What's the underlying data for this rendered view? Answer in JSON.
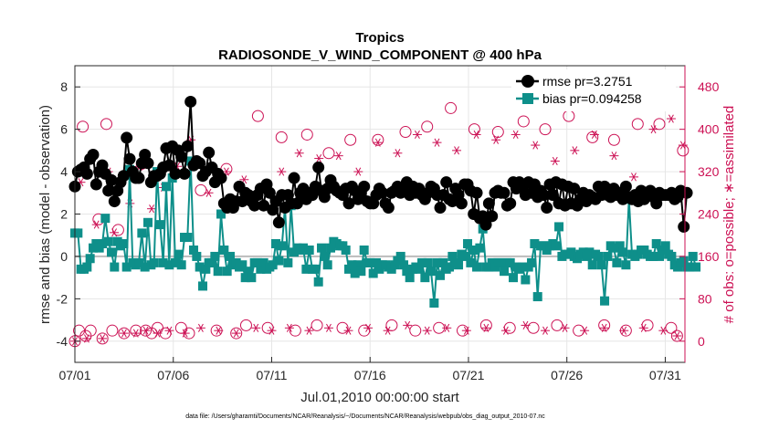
{
  "chart_data": {
    "type": "line",
    "title": "Tropics",
    "subtitle": "RADIOSONDE_V_WIND_COMPONENT @ 400 hPa",
    "xlabel": "Jul.01,2010 00:00:00 start",
    "ylabel": "rmse and bias (model - observation)",
    "y2label": "# of obs: o=possible; ∗=assimilated",
    "footnote": "data file: /Users/gharamti/Documents/NCAR/Reanalysis/~/Documents/NCAR/Reanalysis/webpub/obs_diag_output_2010-07.nc",
    "xlim": [
      1,
      32
    ],
    "ylim": [
      -5,
      9
    ],
    "y2lim": [
      -40,
      520
    ],
    "xticks": [
      1,
      6,
      11,
      16,
      21,
      26,
      31
    ],
    "xtick_labels": [
      "07/01",
      "07/06",
      "07/11",
      "07/16",
      "07/21",
      "07/26",
      "07/31"
    ],
    "yticks": [
      -4,
      -2,
      0,
      2,
      4,
      6,
      8
    ],
    "ytick_labels": [
      "-4",
      "-2",
      "0",
      "2",
      "4",
      "6",
      "8"
    ],
    "y2ticks": [
      0,
      80,
      160,
      240,
      320,
      400,
      480
    ],
    "y2tick_labels": [
      "0",
      "80",
      "160",
      "240",
      "320",
      "400",
      "480"
    ],
    "legend": {
      "location": "top-right",
      "entries": [
        "rmse pr=3.2751",
        "bias pr=0.094258"
      ]
    },
    "colors": {
      "rmse": "#000000",
      "bias": "#0e8f8a",
      "obs": "#cc1154",
      "zero": "#bbbbbb"
    },
    "series": [
      {
        "name": "rmse pr=3.2751",
        "values": [
          3.3,
          4.0,
          4.1,
          4.2,
          3.9,
          4.6,
          4.8,
          3.4,
          4.0,
          4.3,
          3.9,
          3.1,
          3.6,
          2.6,
          3.1,
          3.5,
          3.8,
          5.6,
          4.6,
          4.0,
          3.7,
          3.7,
          4.4,
          4.8,
          4.4,
          3.5,
          3.8,
          3.8,
          3.9,
          4.2,
          5.1,
          4.3,
          5.2,
          3.9,
          5.0,
          4.7,
          3.9,
          5.2,
          7.3,
          4.3,
          4.5,
          4.4,
          3.8,
          4.0,
          4.9,
          4.2,
          3.5,
          3.9,
          3.7,
          2.5,
          2.3,
          2.7,
          2.3,
          2.6,
          3.3,
          2.6,
          3.0,
          2.9,
          2.6,
          2.4,
          2.9,
          3.2,
          2.4,
          3.4,
          3.0,
          2.2,
          2.6,
          1.6,
          2.9,
          2.3,
          2.9,
          2.5,
          3.7,
          2.5,
          3.0,
          3.2,
          2.7,
          3.0,
          2.9,
          3.3,
          4.2,
          3.1,
          2.8,
          3.2,
          3.6,
          3.3,
          3.1,
          3.0,
          2.9,
          3.2,
          2.5,
          3.3,
          3.1,
          2.7,
          3.0,
          3.3,
          2.6,
          2.5,
          2.5,
          2.9,
          3.2,
          3.0,
          2.5,
          2.3,
          3.0,
          3.1,
          3.3,
          3.0,
          3.1,
          3.5,
          2.9,
          3.3,
          3.0,
          3.2,
          2.9,
          2.7,
          3.0,
          3.3,
          3.2,
          2.9,
          2.3,
          2.9,
          3.5,
          2.7,
          2.6,
          3.2,
          2.9,
          2.5,
          3.4,
          3.4,
          3.1,
          2.0,
          3.0,
          1.8,
          1.9,
          1.5,
          2.5,
          1.9,
          3.0,
          3.1,
          3.0,
          3.0,
          2.4,
          2.5,
          3.5,
          3.2,
          3.5,
          3.3,
          2.9,
          3.5,
          3.0,
          3.4,
          2.8,
          3.1,
          2.9,
          2.3,
          3.4,
          2.9,
          3.5,
          2.5,
          3.4,
          2.4,
          3.3,
          2.5,
          3.2,
          2.4,
          2.7,
          3.0,
          2.6,
          2.9,
          2.8,
          2.7,
          3.3,
          2.9,
          3.3,
          2.9,
          2.8,
          3.2,
          2.9,
          3.0,
          2.7,
          3.3,
          2.8,
          2.7,
          2.9,
          2.6,
          3.1,
          2.7,
          2.9,
          3.1,
          2.8,
          2.5,
          3.0,
          2.9,
          2.9,
          2.9,
          3.0,
          2.7,
          2.8,
          3.1,
          1.4,
          3.0
        ]
      },
      {
        "name": "bias pr=0.094258",
        "values": [
          1.1,
          1.1,
          -0.6,
          -0.6,
          -0.5,
          -0.1,
          0.4,
          0.6,
          0.4,
          0.6,
          1.8,
          0.7,
          0.2,
          -0.5,
          0.7,
          0.5,
          0.6,
          -0.5,
          4.1,
          -0.3,
          -0.4,
          -0.3,
          1.1,
          -0.5,
          1.6,
          -0.4,
          -0.3,
          4.0,
          1.5,
          -0.3,
          3.3,
          -0.4,
          3.7,
          -0.3,
          0.1,
          -0.4,
          0.9,
          0.9,
          4.5,
          0.3,
          0.0,
          -0.5,
          -1.4,
          -0.6,
          -0.3,
          -0.3,
          0.0,
          -0.7,
          2.0,
          0.3,
          -0.7,
          0.0,
          -0.4,
          -0.3,
          -0.5,
          -0.4,
          -1.0,
          -0.7,
          -1.0,
          -0.3,
          -0.3,
          -0.6,
          -0.3,
          -0.6,
          -0.5,
          -0.4,
          0.6,
          -0.2,
          0.5,
          2.3,
          -0.3,
          2.4,
          0.2,
          0.4,
          0.3,
          0.4,
          -0.6,
          0.3,
          -0.6,
          -0.6,
          -1.2,
          0.4,
          0.0,
          -0.4,
          0.4,
          0.7,
          0.6,
          0.5,
          0.5,
          0.3,
          -0.6,
          -0.4,
          -0.8,
          -0.4,
          -0.7,
          0.3,
          -0.3,
          -0.3,
          -0.8,
          -0.3,
          -0.6,
          -0.4,
          -0.4,
          -0.5,
          -0.6,
          -0.4,
          -0.2,
          0.0,
          -0.4,
          -0.7,
          -1.0,
          -0.6,
          -0.5,
          -0.6,
          -0.3,
          -1.0,
          -0.3,
          -0.7,
          -2.2,
          -0.3,
          -0.9,
          -0.3,
          -0.6,
          -0.5,
          0.0,
          -0.3,
          -0.4,
          0.1,
          0.0,
          0.6,
          -0.3,
          0.3,
          -0.5,
          0.4,
          1.3,
          -0.5,
          -0.5,
          -0.3,
          -0.5,
          -0.3,
          -0.3,
          -0.7,
          -0.3,
          -0.3,
          -1.0,
          -0.5,
          -0.6,
          -0.5,
          -1.1,
          -0.5,
          -0.3,
          0.6,
          -1.9,
          0.5,
          0.5,
          0.3,
          0.5,
          0.6,
          0.5,
          1.4,
          0.0,
          0.1,
          0.1,
          0.2,
          0.0,
          -0.1,
          0.1,
          0.2,
          0.0,
          0.2,
          -0.4,
          0.1,
          0.0,
          -0.4,
          -2.1,
          0.0,
          0.5,
          0.4,
          -0.3,
          0.5,
          0.2,
          -0.4,
          2.7,
          0.1,
          0.0,
          0.1,
          0.3,
          0.3,
          0.1,
          0.0,
          0.0,
          0.6,
          0.0,
          0.3,
          0.5,
          0.1,
          0.0,
          -0.4,
          -0.5,
          -0.3,
          -0.2,
          -0.5,
          -0.5,
          0.0,
          -0.5
        ]
      }
    ],
    "obs_possible": [
      {
        "x": 1.0,
        "n": 0
      },
      {
        "x": 1.21,
        "n": 20
      },
      {
        "x": 1.4,
        "n": 405
      },
      {
        "x": 1.55,
        "n": 10
      },
      {
        "x": 1.8,
        "n": 20
      },
      {
        "x": 2.2,
        "n": 230
      },
      {
        "x": 2.4,
        "n": 5
      },
      {
        "x": 2.6,
        "n": 410
      },
      {
        "x": 2.9,
        "n": 20
      },
      {
        "x": 3.2,
        "n": 210
      },
      {
        "x": 3.5,
        "n": 15
      },
      {
        "x": 4.1,
        "n": 20
      },
      {
        "x": 4.4,
        "n": 335
      },
      {
        "x": 4.6,
        "n": 20
      },
      {
        "x": 4.9,
        "n": 15
      },
      {
        "x": 5.2,
        "n": 25
      },
      {
        "x": 5.6,
        "n": 15
      },
      {
        "x": 6.4,
        "n": 25
      },
      {
        "x": 6.8,
        "n": 15
      },
      {
        "x": 7.4,
        "n": 285
      },
      {
        "x": 8.2,
        "n": 20
      },
      {
        "x": 8.7,
        "n": 325
      },
      {
        "x": 9.2,
        "n": 15
      },
      {
        "x": 9.7,
        "n": 30
      },
      {
        "x": 10.3,
        "n": 425
      },
      {
        "x": 10.8,
        "n": 25
      },
      {
        "x": 11.5,
        "n": 385
      },
      {
        "x": 12.2,
        "n": 20
      },
      {
        "x": 12.8,
        "n": 390
      },
      {
        "x": 13.3,
        "n": 30
      },
      {
        "x": 13.9,
        "n": 355
      },
      {
        "x": 14.6,
        "n": 25
      },
      {
        "x": 15.0,
        "n": 380
      },
      {
        "x": 15.7,
        "n": 20
      },
      {
        "x": 16.4,
        "n": 380
      },
      {
        "x": 17.1,
        "n": 30
      },
      {
        "x": 17.8,
        "n": 395
      },
      {
        "x": 18.3,
        "n": 20
      },
      {
        "x": 18.9,
        "n": 405
      },
      {
        "x": 19.5,
        "n": 25
      },
      {
        "x": 20.1,
        "n": 440
      },
      {
        "x": 20.7,
        "n": 20
      },
      {
        "x": 21.3,
        "n": 400
      },
      {
        "x": 21.9,
        "n": 30
      },
      {
        "x": 22.5,
        "n": 395
      },
      {
        "x": 23.1,
        "n": 25
      },
      {
        "x": 23.8,
        "n": 415
      },
      {
        "x": 24.3,
        "n": 25
      },
      {
        "x": 24.9,
        "n": 400
      },
      {
        "x": 25.5,
        "n": 30
      },
      {
        "x": 26.1,
        "n": 425
      },
      {
        "x": 26.6,
        "n": 20
      },
      {
        "x": 27.3,
        "n": 385
      },
      {
        "x": 27.9,
        "n": 30
      },
      {
        "x": 28.4,
        "n": 380
      },
      {
        "x": 29.0,
        "n": 20
      },
      {
        "x": 29.6,
        "n": 410
      },
      {
        "x": 30.1,
        "n": 30
      },
      {
        "x": 30.7,
        "n": 410
      },
      {
        "x": 31.3,
        "n": 25
      },
      {
        "x": 31.6,
        "n": 10
      },
      {
        "x": 31.9,
        "n": 360
      }
    ],
    "obs_assimilated": [
      {
        "x": 1.0,
        "n": 0
      },
      {
        "x": 1.3,
        "n": 300
      },
      {
        "x": 1.6,
        "n": 5
      },
      {
        "x": 2.1,
        "n": 220
      },
      {
        "x": 2.4,
        "n": 5
      },
      {
        "x": 2.7,
        "n": 320
      },
      {
        "x": 3.0,
        "n": 205
      },
      {
        "x": 3.5,
        "n": 15
      },
      {
        "x": 3.8,
        "n": 260
      },
      {
        "x": 4.1,
        "n": 15
      },
      {
        "x": 4.3,
        "n": 330
      },
      {
        "x": 4.6,
        "n": 20
      },
      {
        "x": 4.9,
        "n": 250
      },
      {
        "x": 5.2,
        "n": 15
      },
      {
        "x": 5.5,
        "n": 290
      },
      {
        "x": 5.8,
        "n": 20
      },
      {
        "x": 6.2,
        "n": 330
      },
      {
        "x": 6.6,
        "n": 15
      },
      {
        "x": 6.9,
        "n": 380
      },
      {
        "x": 7.4,
        "n": 25
      },
      {
        "x": 7.8,
        "n": 280
      },
      {
        "x": 8.3,
        "n": 20
      },
      {
        "x": 8.7,
        "n": 320
      },
      {
        "x": 9.2,
        "n": 15
      },
      {
        "x": 9.6,
        "n": 305
      },
      {
        "x": 10.2,
        "n": 25
      },
      {
        "x": 10.5,
        "n": 290
      },
      {
        "x": 11.0,
        "n": 20
      },
      {
        "x": 11.5,
        "n": 320
      },
      {
        "x": 11.9,
        "n": 25
      },
      {
        "x": 12.4,
        "n": 355
      },
      {
        "x": 12.9,
        "n": 20
      },
      {
        "x": 13.4,
        "n": 345
      },
      {
        "x": 13.9,
        "n": 25
      },
      {
        "x": 14.4,
        "n": 350
      },
      {
        "x": 14.9,
        "n": 20
      },
      {
        "x": 15.4,
        "n": 320
      },
      {
        "x": 15.9,
        "n": 25
      },
      {
        "x": 16.4,
        "n": 375
      },
      {
        "x": 16.9,
        "n": 20
      },
      {
        "x": 17.4,
        "n": 355
      },
      {
        "x": 17.9,
        "n": 30
      },
      {
        "x": 18.4,
        "n": 390
      },
      {
        "x": 18.9,
        "n": 20
      },
      {
        "x": 19.4,
        "n": 375
      },
      {
        "x": 19.9,
        "n": 25
      },
      {
        "x": 20.4,
        "n": 360
      },
      {
        "x": 20.9,
        "n": 20
      },
      {
        "x": 21.4,
        "n": 390
      },
      {
        "x": 21.9,
        "n": 25
      },
      {
        "x": 22.4,
        "n": 380
      },
      {
        "x": 22.9,
        "n": 20
      },
      {
        "x": 23.4,
        "n": 390
      },
      {
        "x": 23.9,
        "n": 30
      },
      {
        "x": 24.4,
        "n": 370
      },
      {
        "x": 24.9,
        "n": 20
      },
      {
        "x": 25.4,
        "n": 340
      },
      {
        "x": 25.9,
        "n": 25
      },
      {
        "x": 26.4,
        "n": 360
      },
      {
        "x": 26.9,
        "n": 20
      },
      {
        "x": 27.4,
        "n": 390
      },
      {
        "x": 27.9,
        "n": 25
      },
      {
        "x": 28.4,
        "n": 350
      },
      {
        "x": 28.9,
        "n": 20
      },
      {
        "x": 29.4,
        "n": 310
      },
      {
        "x": 29.9,
        "n": 25
      },
      {
        "x": 30.4,
        "n": 400
      },
      {
        "x": 30.9,
        "n": 20
      },
      {
        "x": 31.3,
        "n": 420
      },
      {
        "x": 31.6,
        "n": 10
      },
      {
        "x": 31.9,
        "n": 370
      }
    ]
  }
}
